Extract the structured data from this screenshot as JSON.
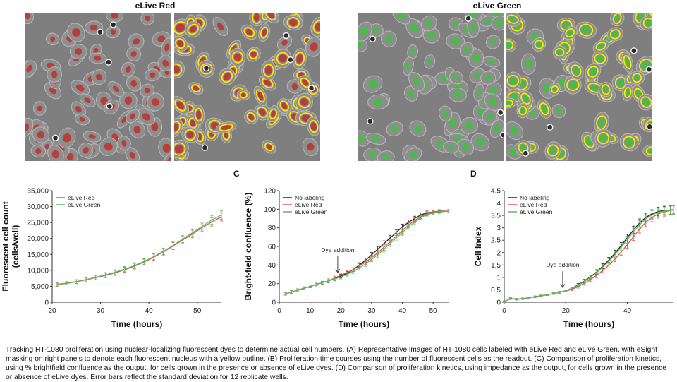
{
  "images": {
    "left_title": "eLive Red",
    "right_title": "eLive Green",
    "colors": {
      "bg": "#7f7f7f",
      "red_nucleus": "#c0302c",
      "green_nucleus": "#3cc43c",
      "mask_outline": "#ffe600"
    }
  },
  "panel_labels": {
    "c": "C",
    "d": "D"
  },
  "chart_data": [
    {
      "type": "line",
      "id": "B",
      "title": "",
      "xlabel": "Time (hours)",
      "ylabel": "Fluorescent cell count (cells/well)",
      "ylabel_lines": [
        "Fluorescent cell count",
        "(cells/well)"
      ],
      "xlim": [
        20,
        55
      ],
      "ylim": [
        0,
        35000
      ],
      "xticks": [
        20,
        30,
        40,
        50
      ],
      "yticks": [
        0,
        5000,
        10000,
        15000,
        20000,
        25000,
        30000,
        35000
      ],
      "ytick_labels": [
        "0",
        "5,000",
        "10,000",
        "15,000",
        "20,000",
        "25,000",
        "30,000",
        "35,000"
      ],
      "legend": "top-left",
      "series": [
        {
          "name": "eLive Red",
          "color": "#d9534f",
          "x": [
            21,
            23,
            25,
            27,
            29,
            31,
            33,
            35,
            37,
            39,
            41,
            43,
            45,
            47,
            49,
            51,
            53,
            55
          ],
          "y": [
            5500,
            5900,
            6400,
            7000,
            7700,
            8400,
            9200,
            10200,
            11300,
            12600,
            14100,
            15800,
            17600,
            19500,
            21400,
            23400,
            25200,
            26800
          ],
          "err": [
            500,
            500,
            600,
            600,
            700,
            700,
            800,
            800,
            900,
            900,
            1000,
            1000,
            1100,
            1100,
            1200,
            1200,
            1300,
            1300
          ]
        },
        {
          "name": "eLive Green",
          "color": "#5cb85c",
          "x": [
            21,
            23,
            25,
            27,
            29,
            31,
            33,
            35,
            37,
            39,
            41,
            43,
            45,
            47,
            49,
            51,
            53,
            55
          ],
          "y": [
            5600,
            6000,
            6500,
            7100,
            7800,
            8600,
            9400,
            10400,
            11500,
            12800,
            14300,
            16000,
            17800,
            19800,
            21800,
            23800,
            25800,
            27400
          ],
          "err": [
            500,
            500,
            600,
            600,
            700,
            700,
            800,
            800,
            900,
            900,
            1000,
            1000,
            1100,
            1100,
            1200,
            1200,
            1300,
            1300
          ]
        }
      ]
    },
    {
      "type": "line",
      "id": "C",
      "title": "",
      "xlabel": "Time (hours)",
      "ylabel": "Bright-field confluence (%)",
      "xlim": [
        0,
        55
      ],
      "ylim": [
        0,
        120
      ],
      "xticks": [
        0,
        10,
        20,
        30,
        40,
        50
      ],
      "yticks": [
        0,
        20,
        40,
        60,
        80,
        100,
        120
      ],
      "legend": "top-left",
      "annotation": {
        "text": "Dye addition",
        "x": 19,
        "y": 28
      },
      "series": [
        {
          "name": "No labeling",
          "color": "#222222",
          "x": [
            2,
            4,
            6,
            8,
            10,
            12,
            14,
            16,
            18,
            20,
            22,
            24,
            26,
            28,
            30,
            32,
            34,
            36,
            38,
            40,
            42,
            44,
            46,
            48,
            50,
            52,
            55
          ],
          "y": [
            9,
            11,
            13,
            15,
            17,
            19,
            21,
            23,
            25,
            28,
            31,
            35,
            40,
            45,
            51,
            57,
            63,
            69,
            75,
            81,
            86,
            90,
            94,
            96,
            97,
            98,
            98
          ],
          "err": [
            1.5,
            1.5,
            1.5,
            1.5,
            1.5,
            1.5,
            1.5,
            2,
            2,
            2,
            2,
            2,
            2.5,
            2.5,
            2.5,
            3,
            3,
            3,
            3,
            3,
            2.5,
            2.5,
            2,
            2,
            1.5,
            1.5,
            1.5
          ]
        },
        {
          "name": "eLive Red",
          "color": "#d9534f",
          "x": [
            2,
            4,
            6,
            8,
            10,
            12,
            14,
            16,
            18,
            20,
            22,
            24,
            26,
            28,
            30,
            32,
            34,
            36,
            38,
            40,
            42,
            44,
            46,
            48,
            50,
            52,
            55
          ],
          "y": [
            9,
            11,
            13,
            15,
            17,
            19,
            21,
            23,
            26,
            29,
            32,
            35,
            39,
            43,
            48,
            53,
            59,
            65,
            71,
            77,
            83,
            88,
            92,
            95,
            97,
            98,
            98
          ],
          "err": [
            1.5,
            1.5,
            1.5,
            1.5,
            1.5,
            1.5,
            1.5,
            2,
            2,
            2,
            2,
            2,
            2.5,
            2.5,
            2.5,
            3,
            3,
            3,
            3,
            3,
            2.5,
            2.5,
            2,
            2,
            1.5,
            1.5,
            1.5
          ]
        },
        {
          "name": "eLive Green",
          "color": "#5cb85c",
          "x": [
            2,
            4,
            6,
            8,
            10,
            12,
            14,
            16,
            18,
            20,
            22,
            24,
            26,
            28,
            30,
            32,
            34,
            36,
            38,
            40,
            42,
            44,
            46,
            48,
            50,
            52,
            55
          ],
          "y": [
            9,
            11,
            13,
            15,
            17,
            19,
            21,
            23,
            25,
            27,
            30,
            33,
            37,
            41,
            46,
            51,
            57,
            63,
            69,
            75,
            81,
            86,
            91,
            94,
            96,
            97,
            98
          ],
          "err": [
            1.5,
            1.5,
            1.5,
            1.5,
            1.5,
            1.5,
            1.5,
            2,
            2,
            2,
            2,
            2,
            2.5,
            2.5,
            2.5,
            3,
            3,
            3,
            3,
            3,
            2.5,
            2.5,
            2,
            2,
            1.5,
            1.5,
            1.5
          ]
        }
      ]
    },
    {
      "type": "line",
      "id": "D",
      "title": "",
      "xlabel": "Time (hours)",
      "ylabel": "Cell Index",
      "xlim": [
        0,
        55
      ],
      "ylim": [
        0,
        4.5
      ],
      "xticks": [
        0,
        20,
        40
      ],
      "yticks": [
        0,
        0.5,
        1,
        1.5,
        2,
        2.5,
        3,
        3.5,
        4,
        4.5
      ],
      "ytick_labels": [
        "0",
        "0.5",
        "1",
        "1.5",
        "2",
        "2.5",
        "3",
        "3.5",
        "4",
        "4.5"
      ],
      "legend": "top-left",
      "annotation": {
        "text": "Dye addition",
        "x": 19,
        "y": 0.45
      },
      "series": [
        {
          "name": "No labeling",
          "color": "#222222",
          "x": [
            0,
            2,
            4,
            6,
            8,
            10,
            12,
            14,
            16,
            18,
            20,
            22,
            24,
            26,
            28,
            30,
            32,
            34,
            36,
            38,
            40,
            42,
            44,
            46,
            48,
            50,
            52,
            54,
            55
          ],
          "y": [
            0.02,
            0.15,
            0.12,
            0.14,
            0.18,
            0.22,
            0.26,
            0.3,
            0.35,
            0.4,
            0.46,
            0.56,
            0.7,
            0.85,
            1.02,
            1.22,
            1.45,
            1.7,
            1.98,
            2.28,
            2.6,
            2.92,
            3.2,
            3.42,
            3.56,
            3.66,
            3.7,
            3.72,
            3.73
          ],
          "err": [
            0.03,
            0.03,
            0.03,
            0.03,
            0.03,
            0.03,
            0.03,
            0.03,
            0.03,
            0.04,
            0.04,
            0.05,
            0.06,
            0.07,
            0.08,
            0.09,
            0.1,
            0.11,
            0.12,
            0.13,
            0.14,
            0.15,
            0.16,
            0.17,
            0.17,
            0.17,
            0.17,
            0.17,
            0.17
          ]
        },
        {
          "name": "eLive Red",
          "color": "#d9534f",
          "x": [
            0,
            2,
            4,
            6,
            8,
            10,
            12,
            14,
            16,
            18,
            20,
            22,
            24,
            26,
            28,
            30,
            32,
            34,
            36,
            38,
            40,
            42,
            44,
            46,
            48,
            50,
            52,
            54,
            55
          ],
          "y": [
            0.02,
            0.14,
            0.12,
            0.14,
            0.18,
            0.22,
            0.26,
            0.3,
            0.35,
            0.4,
            0.45,
            0.52,
            0.63,
            0.76,
            0.91,
            1.08,
            1.28,
            1.5,
            1.75,
            2.02,
            2.32,
            2.64,
            2.95,
            3.22,
            3.42,
            3.56,
            3.64,
            3.7,
            3.72
          ],
          "err": [
            0.03,
            0.03,
            0.03,
            0.03,
            0.03,
            0.03,
            0.03,
            0.03,
            0.03,
            0.04,
            0.04,
            0.05,
            0.06,
            0.07,
            0.08,
            0.09,
            0.1,
            0.11,
            0.12,
            0.13,
            0.14,
            0.15,
            0.16,
            0.17,
            0.17,
            0.17,
            0.17,
            0.17,
            0.17
          ]
        },
        {
          "name": "eLive Green",
          "color": "#5cb85c",
          "x": [
            0,
            2,
            4,
            6,
            8,
            10,
            12,
            14,
            16,
            18,
            20,
            22,
            24,
            26,
            28,
            30,
            32,
            34,
            36,
            38,
            40,
            42,
            44,
            46,
            48,
            50,
            52,
            54,
            55
          ],
          "y": [
            0.02,
            0.15,
            0.12,
            0.14,
            0.18,
            0.22,
            0.26,
            0.3,
            0.35,
            0.4,
            0.46,
            0.55,
            0.68,
            0.83,
            1.0,
            1.19,
            1.41,
            1.65,
            1.92,
            2.21,
            2.52,
            2.84,
            3.12,
            3.36,
            3.52,
            3.62,
            3.68,
            3.71,
            3.72
          ],
          "err": [
            0.03,
            0.03,
            0.03,
            0.03,
            0.03,
            0.03,
            0.03,
            0.03,
            0.03,
            0.04,
            0.04,
            0.05,
            0.06,
            0.07,
            0.08,
            0.09,
            0.1,
            0.11,
            0.12,
            0.13,
            0.14,
            0.15,
            0.16,
            0.17,
            0.17,
            0.17,
            0.17,
            0.17,
            0.17
          ]
        }
      ]
    }
  ],
  "caption": "Tracking HT-1080 proliferation using nuclear-localizing fluorescent dyes to determine actual cell numbers. (A) Representative images of HT-1080 cells labeled with eLive Red and eLive Green, with eSight masking on right panels to denote each fluorescent nucleus with a yellow outline. (B) Proliferation time courses using the number of fluorescent cells as the readout. (C) Comparison of proliferation kinetics, using % brightfield confluence as the output, for cells grown in the presence or absence of eLive dyes. (D) Comparison of proliferation kinetics, using impedance as the output, for cells grown in the presence or absence of eLive dyes. Error bars reflect the standard deviation for 12 replicate wells."
}
